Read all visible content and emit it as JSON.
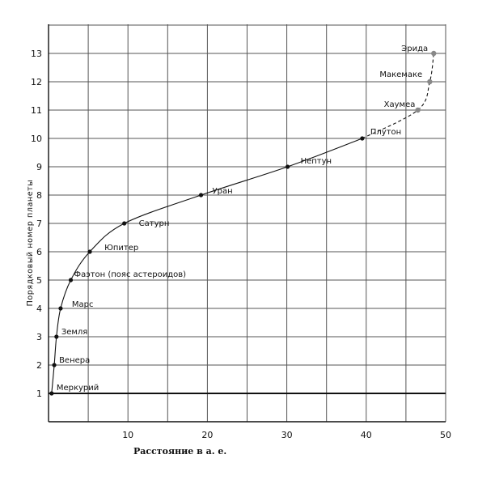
{
  "chart_data": {
    "type": "line",
    "xlabel": "Расстояние в а. е.",
    "ylabel": "Порядковый номер планеты",
    "xlim": [
      0,
      50
    ],
    "ylim": [
      0,
      14
    ],
    "x_ticks": [
      "10",
      "20",
      "30",
      "40",
      "50"
    ],
    "y_ticks": [
      "1",
      "2",
      "3",
      "4",
      "5",
      "6",
      "7",
      "8",
      "9",
      "10",
      "11",
      "12",
      "13"
    ],
    "grid": true,
    "series": [
      {
        "points": [
          {
            "name": "Меркурий",
            "x": 0.39,
            "y": 1
          },
          {
            "name": "Венера",
            "x": 0.72,
            "y": 2
          },
          {
            "name": "Земля",
            "x": 1.0,
            "y": 3
          },
          {
            "name": "Марс",
            "x": 1.52,
            "y": 4
          },
          {
            "name": "Фаэтон (пояс астероидов)",
            "x": 2.8,
            "y": 5
          },
          {
            "name": "Юпитер",
            "x": 5.2,
            "y": 6
          },
          {
            "name": "Сатурн",
            "x": 9.54,
            "y": 7
          },
          {
            "name": "Уран",
            "x": 19.2,
            "y": 8
          },
          {
            "name": "Нептун",
            "x": 30.1,
            "y": 9
          },
          {
            "name": "Плутон",
            "x": 39.5,
            "y": 10
          }
        ]
      },
      {
        "style": "dashed",
        "points": [
          {
            "name": "Плутон",
            "x": 39.5,
            "y": 10
          },
          {
            "name": "Хаумеа",
            "x": 46.5,
            "y": 11
          },
          {
            "name": "Макемаке",
            "x": 48.0,
            "y": 12
          },
          {
            "name": "Эрида",
            "x": 48.5,
            "y": 13
          }
        ]
      }
    ]
  }
}
